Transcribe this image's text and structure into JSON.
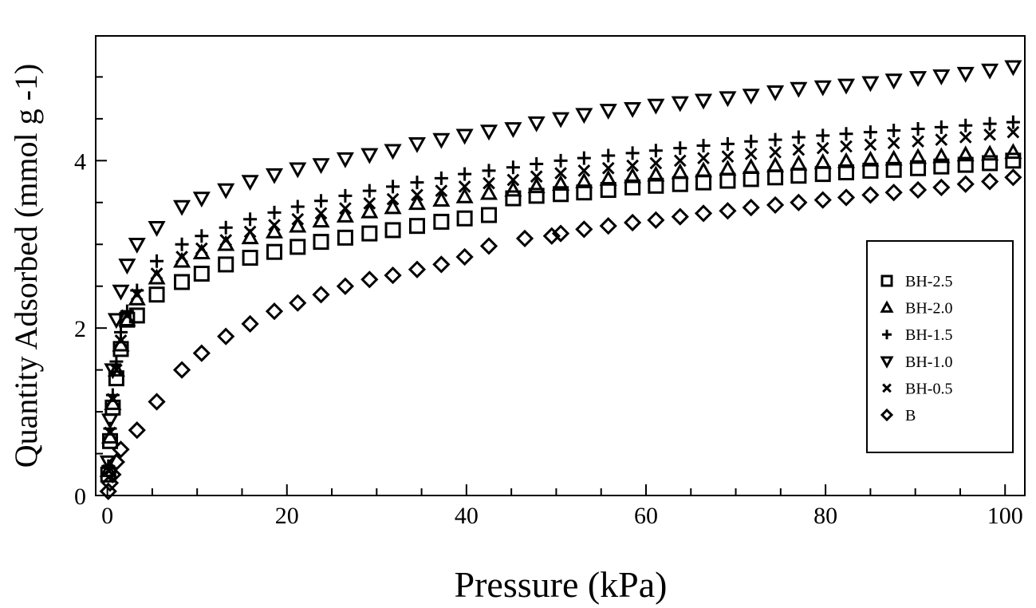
{
  "chart_data": {
    "type": "scatter",
    "title": "",
    "xlabel": "Pressure (kPa)",
    "ylabel": "Quantity Adsorbed (mmol g -1)",
    "xlim": [
      -1.3,
      102.2
    ],
    "ylim": [
      0,
      5.49
    ],
    "xticks": [
      0,
      20,
      40,
      60,
      80,
      100
    ],
    "yticks": [
      0,
      2,
      4
    ],
    "grid": false,
    "legend_position": "right",
    "x_common": [
      0.1,
      0.3,
      0.6,
      1.0,
      1.5,
      2.2,
      3.3,
      5.5,
      8.3,
      10.5,
      13.2,
      15.9,
      18.6,
      21.2,
      23.8,
      26.5,
      29.2,
      31.8,
      34.5,
      37.2,
      39.8,
      42.5,
      45.2,
      47.8,
      50.5,
      53.1,
      55.8,
      58.5,
      61.1,
      63.8,
      66.4,
      69.1,
      71.7,
      74.4,
      77.0,
      79.7,
      82.3,
      85.0,
      87.6,
      90.3,
      92.9,
      95.6,
      98.3,
      100.9
    ],
    "series": [
      {
        "name": "BH-2.5",
        "marker": "square",
        "y": [
          0.25,
          0.65,
          1.05,
          1.4,
          1.75,
          2.1,
          2.15,
          2.4,
          2.55,
          2.65,
          2.76,
          2.84,
          2.91,
          2.97,
          3.03,
          3.08,
          3.13,
          3.17,
          3.22,
          3.27,
          3.31,
          3.35,
          3.55,
          3.58,
          3.6,
          3.62,
          3.65,
          3.68,
          3.7,
          3.72,
          3.74,
          3.76,
          3.78,
          3.8,
          3.82,
          3.84,
          3.86,
          3.88,
          3.89,
          3.91,
          3.93,
          3.95,
          3.97,
          4.0
        ]
      },
      {
        "name": "BH-2.0",
        "marker": "triangle-up",
        "y": [
          0.3,
          0.7,
          1.1,
          1.5,
          1.8,
          2.1,
          2.35,
          2.6,
          2.8,
          2.9,
          3.0,
          3.08,
          3.15,
          3.22,
          3.28,
          3.34,
          3.39,
          3.44,
          3.49,
          3.53,
          3.57,
          3.61,
          3.65,
          3.69,
          3.72,
          3.75,
          3.78,
          3.81,
          3.83,
          3.86,
          3.88,
          3.9,
          3.92,
          3.94,
          3.96,
          3.98,
          3.99,
          4.01,
          4.02,
          4.04,
          4.05,
          4.07,
          4.08,
          4.1
        ]
      },
      {
        "name": "BH-1.5",
        "marker": "plus",
        "y": [
          0.35,
          0.8,
          1.2,
          1.6,
          1.95,
          2.2,
          2.45,
          2.8,
          3.0,
          3.1,
          3.2,
          3.3,
          3.38,
          3.45,
          3.52,
          3.58,
          3.64,
          3.69,
          3.74,
          3.79,
          3.84,
          3.88,
          3.92,
          3.96,
          4.0,
          4.03,
          4.06,
          4.09,
          4.12,
          4.15,
          4.18,
          4.2,
          4.23,
          4.25,
          4.28,
          4.3,
          4.32,
          4.34,
          4.36,
          4.38,
          4.4,
          4.42,
          4.44,
          4.46
        ]
      },
      {
        "name": "BH-1.0",
        "marker": "triangle-down",
        "y": [
          0.4,
          0.9,
          1.5,
          2.1,
          2.44,
          2.75,
          3.0,
          3.2,
          3.45,
          3.55,
          3.65,
          3.75,
          3.83,
          3.9,
          3.95,
          4.02,
          4.07,
          4.12,
          4.2,
          4.25,
          4.3,
          4.35,
          4.38,
          4.45,
          4.5,
          4.55,
          4.6,
          4.62,
          4.66,
          4.69,
          4.72,
          4.75,
          4.78,
          4.82,
          4.86,
          4.88,
          4.9,
          4.93,
          4.96,
          4.99,
          5.01,
          5.04,
          5.08,
          5.12
        ]
      },
      {
        "name": "BH-0.5",
        "marker": "cross",
        "y": [
          0.3,
          0.75,
          1.15,
          1.5,
          1.85,
          2.15,
          2.4,
          2.65,
          2.85,
          2.95,
          3.05,
          3.15,
          3.23,
          3.3,
          3.37,
          3.43,
          3.49,
          3.54,
          3.59,
          3.64,
          3.69,
          3.73,
          3.77,
          3.81,
          3.85,
          3.88,
          3.91,
          3.94,
          3.97,
          4.0,
          4.03,
          4.05,
          4.08,
          4.1,
          4.13,
          4.15,
          4.17,
          4.19,
          4.21,
          4.23,
          4.25,
          4.28,
          4.31,
          4.34
        ]
      },
      {
        "name": "B",
        "marker": "diamond",
        "x": [
          0.1,
          0.3,
          0.6,
          1.0,
          1.5,
          3.3,
          5.5,
          8.3,
          10.5,
          13.2,
          15.9,
          18.6,
          21.2,
          23.8,
          26.5,
          29.2,
          31.8,
          34.5,
          37.2,
          39.8,
          42.5,
          46.5,
          49.5,
          50.5,
          53.1,
          55.8,
          58.5,
          61.1,
          63.8,
          66.4,
          69.1,
          71.7,
          74.4,
          77.0,
          79.7,
          82.3,
          85.0,
          87.6,
          90.3,
          92.9,
          95.6,
          98.3,
          100.9
        ],
        "y": [
          0.05,
          0.15,
          0.25,
          0.4,
          0.55,
          0.78,
          1.12,
          1.5,
          1.7,
          1.9,
          2.05,
          2.2,
          2.3,
          2.4,
          2.5,
          2.58,
          2.63,
          2.7,
          2.76,
          2.85,
          2.98,
          3.07,
          3.1,
          3.13,
          3.18,
          3.22,
          3.26,
          3.29,
          3.33,
          3.37,
          3.4,
          3.44,
          3.47,
          3.5,
          3.53,
          3.56,
          3.59,
          3.62,
          3.65,
          3.68,
          3.72,
          3.75,
          3.8
        ]
      }
    ]
  }
}
